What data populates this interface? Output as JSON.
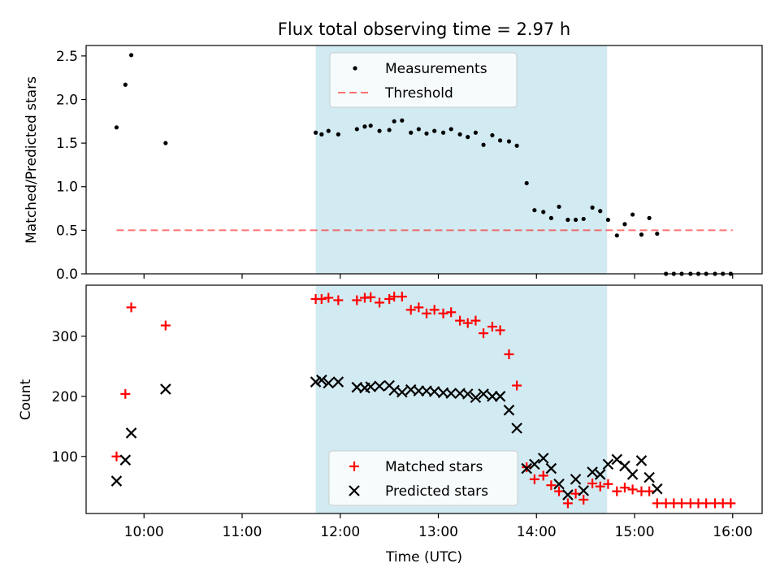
{
  "title": "Flux total observing time = 2.97 h",
  "colors": {
    "shade": "#add8e6",
    "threshold": "#ff0000",
    "matched": "#ff0000",
    "predicted": "#000000",
    "measurement": "#000000"
  },
  "chart_data": [
    {
      "type": "scatter",
      "panel": "top",
      "ylabel": "Matched/Predicted stars",
      "xlabel": "",
      "x_unit": "hours (UTC)",
      "xlim": [
        9.41,
        16.3
      ],
      "ylim": [
        0,
        2.62
      ],
      "yticks": [
        0.0,
        0.5,
        1.0,
        1.5,
        2.0,
        2.5
      ],
      "ytick_labels": [
        "0.0",
        "0.5",
        "1.0",
        "1.5",
        "2.0",
        "2.5"
      ],
      "xticks": [
        10,
        11,
        12,
        13,
        14,
        15,
        16
      ],
      "shaded_span": [
        11.75,
        14.72
      ],
      "threshold_line": {
        "y": 0.5,
        "x_range": [
          9.72,
          16.0
        ]
      },
      "legend": {
        "position": "top-center",
        "entries": [
          "Measurements",
          "Threshold"
        ]
      },
      "series": [
        {
          "name": "Measurements",
          "marker": "dot",
          "points": [
            [
              9.72,
              1.68
            ],
            [
              9.81,
              2.17
            ],
            [
              9.87,
              2.51
            ],
            [
              10.22,
              1.5
            ],
            [
              11.75,
              1.62
            ],
            [
              11.81,
              1.6
            ],
            [
              11.88,
              1.64
            ],
            [
              11.98,
              1.6
            ],
            [
              12.17,
              1.66
            ],
            [
              12.25,
              1.69
            ],
            [
              12.31,
              1.7
            ],
            [
              12.4,
              1.64
            ],
            [
              12.5,
              1.65
            ],
            [
              12.55,
              1.75
            ],
            [
              12.63,
              1.76
            ],
            [
              12.72,
              1.62
            ],
            [
              12.8,
              1.66
            ],
            [
              12.88,
              1.61
            ],
            [
              12.96,
              1.64
            ],
            [
              13.05,
              1.62
            ],
            [
              13.13,
              1.66
            ],
            [
              13.22,
              1.6
            ],
            [
              13.3,
              1.57
            ],
            [
              13.38,
              1.62
            ],
            [
              13.46,
              1.48
            ],
            [
              13.55,
              1.59
            ],
            [
              13.63,
              1.53
            ],
            [
              13.72,
              1.52
            ],
            [
              13.8,
              1.47
            ],
            [
              13.9,
              1.04
            ],
            [
              13.98,
              0.73
            ],
            [
              14.07,
              0.71
            ],
            [
              14.15,
              0.64
            ],
            [
              14.23,
              0.77
            ],
            [
              14.32,
              0.62
            ],
            [
              14.4,
              0.62
            ],
            [
              14.48,
              0.63
            ],
            [
              14.57,
              0.76
            ],
            [
              14.65,
              0.72
            ],
            [
              14.73,
              0.62
            ],
            [
              14.82,
              0.44
            ],
            [
              14.9,
              0.57
            ],
            [
              14.98,
              0.68
            ],
            [
              15.07,
              0.45
            ],
            [
              15.15,
              0.64
            ],
            [
              15.23,
              0.46
            ],
            [
              15.32,
              0.0
            ],
            [
              15.4,
              0.0
            ],
            [
              15.48,
              0.0
            ],
            [
              15.57,
              0.0
            ],
            [
              15.65,
              0.0
            ],
            [
              15.73,
              0.0
            ],
            [
              15.82,
              0.0
            ],
            [
              15.9,
              0.0
            ],
            [
              15.98,
              0.0
            ]
          ]
        }
      ]
    },
    {
      "type": "scatter",
      "panel": "bottom",
      "ylabel": "Count",
      "xlabel": "Time (UTC)",
      "x_unit": "hours (UTC)",
      "xlim": [
        9.41,
        16.3
      ],
      "ylim": [
        5,
        385
      ],
      "yticks": [
        100,
        200,
        300
      ],
      "ytick_labels": [
        "100",
        "200",
        "300"
      ],
      "xticks": [
        10,
        11,
        12,
        13,
        14,
        15,
        16
      ],
      "xtick_labels": [
        "10:00",
        "11:00",
        "12:00",
        "13:00",
        "14:00",
        "15:00",
        "16:00"
      ],
      "shaded_span": [
        11.75,
        14.72
      ],
      "legend": {
        "position": "lower-center",
        "entries": [
          "Matched stars",
          "Predicted stars"
        ]
      },
      "series": [
        {
          "name": "Matched stars",
          "marker": "plus",
          "points": [
            [
              9.72,
              100
            ],
            [
              9.81,
              204
            ],
            [
              9.87,
              348
            ],
            [
              10.22,
              318
            ],
            [
              11.75,
              362
            ],
            [
              11.81,
              362
            ],
            [
              11.88,
              364
            ],
            [
              11.98,
              360
            ],
            [
              12.17,
              360
            ],
            [
              12.25,
              364
            ],
            [
              12.31,
              365
            ],
            [
              12.4,
              356
            ],
            [
              12.5,
              362
            ],
            [
              12.55,
              366
            ],
            [
              12.63,
              366
            ],
            [
              12.72,
              344
            ],
            [
              12.8,
              348
            ],
            [
              12.88,
              338
            ],
            [
              12.96,
              344
            ],
            [
              13.05,
              338
            ],
            [
              13.13,
              340
            ],
            [
              13.22,
              326
            ],
            [
              13.3,
              322
            ],
            [
              13.38,
              326
            ],
            [
              13.46,
              305
            ],
            [
              13.55,
              316
            ],
            [
              13.63,
              310
            ],
            [
              13.72,
              270
            ],
            [
              13.8,
              218
            ],
            [
              13.9,
              82
            ],
            [
              13.98,
              62
            ],
            [
              14.07,
              68
            ],
            [
              14.15,
              52
            ],
            [
              14.23,
              42
            ],
            [
              14.32,
              22
            ],
            [
              14.4,
              38
            ],
            [
              14.48,
              28
            ],
            [
              14.57,
              55
            ],
            [
              14.65,
              50
            ],
            [
              14.73,
              54
            ],
            [
              14.82,
              42
            ],
            [
              14.9,
              48
            ],
            [
              14.98,
              45
            ],
            [
              15.07,
              42
            ],
            [
              15.15,
              42
            ],
            [
              15.23,
              22
            ],
            [
              15.32,
              22
            ],
            [
              15.4,
              22
            ],
            [
              15.48,
              22
            ],
            [
              15.57,
              22
            ],
            [
              15.65,
              22
            ],
            [
              15.73,
              22
            ],
            [
              15.82,
              22
            ],
            [
              15.9,
              22
            ],
            [
              15.98,
              22
            ]
          ]
        },
        {
          "name": "Predicted stars",
          "marker": "x",
          "points": [
            [
              9.72,
              59
            ],
            [
              9.81,
              94
            ],
            [
              9.87,
              139
            ],
            [
              10.22,
              212
            ],
            [
              11.75,
              224
            ],
            [
              11.81,
              227
            ],
            [
              11.88,
              222
            ],
            [
              11.98,
              224
            ],
            [
              12.17,
              215
            ],
            [
              12.25,
              214
            ],
            [
              12.31,
              216
            ],
            [
              12.4,
              217
            ],
            [
              12.5,
              218
            ],
            [
              12.55,
              210
            ],
            [
              12.63,
              207
            ],
            [
              12.72,
              211
            ],
            [
              12.8,
              209
            ],
            [
              12.88,
              209
            ],
            [
              12.96,
              208
            ],
            [
              13.05,
              206
            ],
            [
              13.13,
              205
            ],
            [
              13.22,
              205
            ],
            [
              13.3,
              204
            ],
            [
              13.38,
              198
            ],
            [
              13.46,
              204
            ],
            [
              13.55,
              200
            ],
            [
              13.63,
              200
            ],
            [
              13.72,
              177
            ],
            [
              13.8,
              147
            ],
            [
              13.9,
              80
            ],
            [
              13.98,
              87
            ],
            [
              14.07,
              97
            ],
            [
              14.15,
              80
            ],
            [
              14.23,
              54
            ],
            [
              14.32,
              36
            ],
            [
              14.4,
              62
            ],
            [
              14.48,
              43
            ],
            [
              14.57,
              74
            ],
            [
              14.65,
              70
            ],
            [
              14.73,
              87
            ],
            [
              14.82,
              95
            ],
            [
              14.9,
              84
            ],
            [
              14.98,
              70
            ],
            [
              15.07,
              93
            ],
            [
              15.15,
              65
            ],
            [
              15.23,
              46
            ]
          ]
        }
      ]
    }
  ]
}
